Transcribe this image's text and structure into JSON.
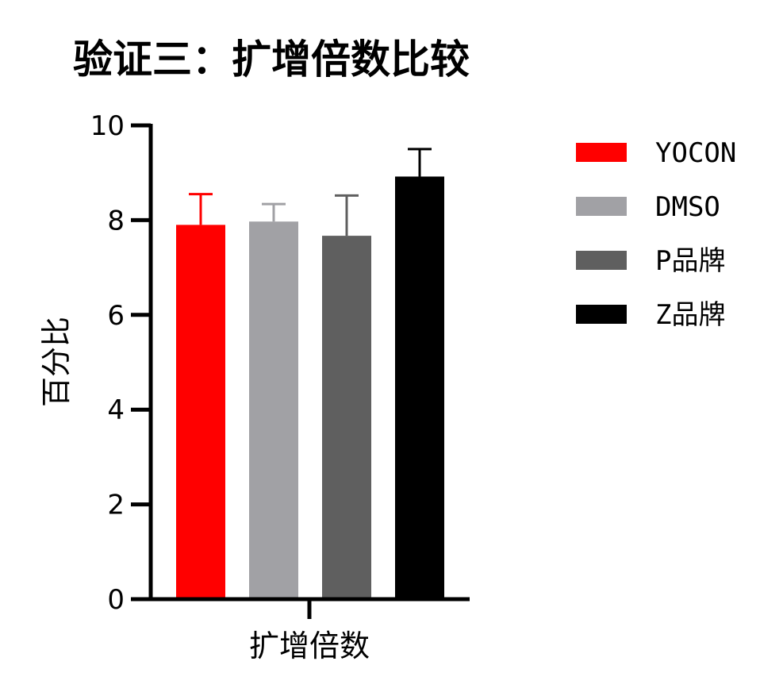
{
  "chart_data": {
    "type": "bar",
    "title": "验证三：扩增倍数比较",
    "xlabel": "扩增倍数",
    "ylabel": "百分比",
    "ylim": [
      0,
      10
    ],
    "yticks": [
      "0",
      "2",
      "4",
      "6",
      "8",
      "10"
    ],
    "categories": [
      "扩增倍数"
    ],
    "series": [
      {
        "name": "YOCON",
        "values": [
          7.9
        ],
        "error": [
          0.65
        ],
        "color": "#ff0000",
        "error_color": "#ff0000"
      },
      {
        "name": "DMSO",
        "values": [
          7.97
        ],
        "error": [
          0.37
        ],
        "color": "#a1a1a5",
        "error_color": "#a1a1a5"
      },
      {
        "name": "P品牌",
        "values": [
          7.67
        ],
        "error": [
          0.85
        ],
        "color": "#5f5f5f",
        "error_color": "#5f5f5f"
      },
      {
        "name": "Z品牌",
        "values": [
          8.92
        ],
        "error": [
          0.58
        ],
        "color": "#000000",
        "error_color": "#000000"
      }
    ],
    "legend": "right",
    "grid": false
  }
}
